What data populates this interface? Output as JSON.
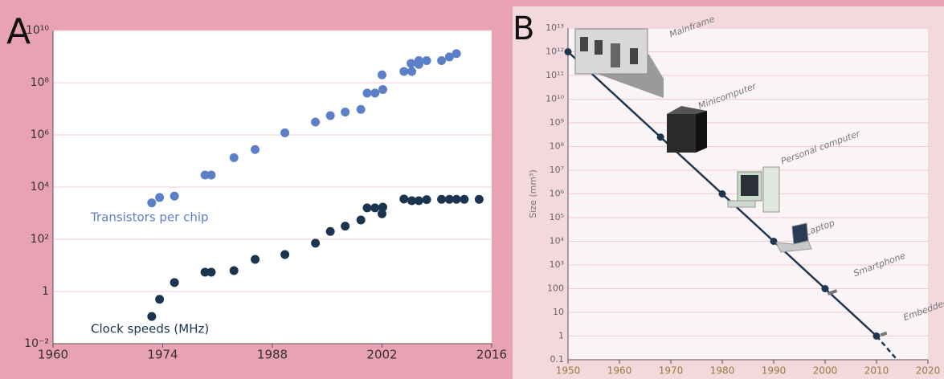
{
  "chart_data": [
    {
      "type": "scatter",
      "panel_label": "A",
      "xlim": [
        1960,
        2016
      ],
      "xticks": [
        1960,
        1974,
        1988,
        2002,
        2016
      ],
      "ylim": [
        0.01,
        10000000000.0
      ],
      "log_y": true,
      "grid": true,
      "yticks": [
        {
          "value": 0.01,
          "label": "10⁻²"
        },
        1,
        {
          "value": 100,
          "label": "10²"
        },
        {
          "value": 10000,
          "label": "10⁴"
        },
        {
          "value": 1000000,
          "label": "10⁶"
        },
        {
          "value": 100000000,
          "label": "10⁸"
        },
        {
          "value": 10000000000,
          "label": "10¹⁰"
        }
      ],
      "series": [
        {
          "name": "Transistors per chip",
          "color": "#5b80c8",
          "x": [
            1972.6,
            1973.6,
            1975.5,
            1979.4,
            1980.2,
            1983.1,
            1985.8,
            1989.6,
            1993.5,
            1995.4,
            1997.3,
            1999.3,
            2000.1,
            2001.1,
            2002.1,
            2002,
            2004.8,
            2005.8,
            2005.7,
            2006.7,
            2006.7,
            2007.7,
            2009.6,
            2010.6,
            2011.5
          ],
          "values": [
            2500,
            4000,
            4500,
            29000,
            29000,
            134000,
            275000,
            1200000,
            3100000,
            5500000,
            7500000,
            9500000,
            40000000,
            40000000,
            55000000,
            200000000,
            270000000,
            270000000,
            550000000,
            700000000,
            500000000,
            700000000,
            700000000,
            970000000,
            1300000000
          ]
        },
        {
          "name": "Clock speeds (MHz)",
          "color": "#1b3450",
          "x": [
            1972.6,
            1973.6,
            1975.5,
            1979.4,
            1980.2,
            1983.1,
            1985.8,
            1989.6,
            1993.5,
            1995.4,
            1997.3,
            1999.3,
            2000.1,
            2001.1,
            2002.1,
            2002,
            2004.8,
            2005.8,
            2006.7,
            2007.7,
            2009.6,
            2010.6,
            2011.5,
            2012.5,
            2014.4
          ],
          "values": [
            0.11,
            0.5,
            2.2,
            5.5,
            5.5,
            6.3,
            17,
            26,
            71,
            200,
            320,
            550,
            1600,
            1600,
            1700,
            950,
            3500,
            3000,
            3000,
            3300,
            3400,
            3400,
            3400,
            3400,
            3400
          ]
        }
      ]
    },
    {
      "type": "line",
      "panel_label": "B",
      "y_label": "Size (mm³)",
      "xlim": [
        1950,
        2020
      ],
      "xticks": [
        1950,
        1960,
        1970,
        1980,
        1990,
        2000,
        2010,
        2020
      ],
      "ylim": [
        0.1,
        10000000000000.0
      ],
      "log_y": true,
      "grid": true,
      "yticks": [
        0.1,
        1,
        10,
        100,
        {
          "value": 1000,
          "label": "10³"
        },
        {
          "value": 10000,
          "label": "10⁴"
        },
        {
          "value": 100000,
          "label": "10⁵"
        },
        {
          "value": 1000000,
          "label": "10⁶"
        },
        {
          "value": 10000000,
          "label": "10⁷"
        },
        {
          "value": 100000000,
          "label": "10⁸"
        },
        {
          "value": 1000000000,
          "label": "10⁹"
        },
        {
          "value": 10000000000,
          "label": "10¹⁰"
        },
        {
          "value": 100000000000,
          "label": "10¹¹"
        },
        {
          "value": 1000000000000,
          "label": "10¹²"
        },
        {
          "value": 10000000000000,
          "label": "10¹³"
        }
      ],
      "series": [
        {
          "color": "#1e3550",
          "x": [
            1950,
            1968,
            1980,
            1990,
            2000,
            2010
          ],
          "values": [
            1000000000000.0,
            250000000,
            1000000,
            10000,
            100,
            1
          ],
          "point_labels": [
            "Mainframe",
            "Minicomputer",
            "Personal computer",
            "Laptop",
            "Smartphone",
            "Embedded processors"
          ]
        },
        {
          "color": "#1e3550",
          "dashed": true,
          "x": [
            2010,
            2014
          ],
          "values": [
            1,
            0.1
          ]
        }
      ]
    }
  ]
}
